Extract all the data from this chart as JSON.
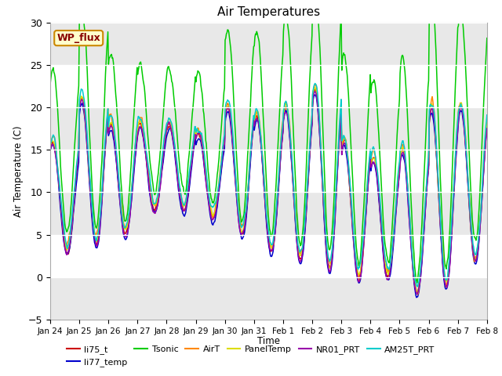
{
  "title": "Air Temperatures",
  "ylabel": "Air Temperature (C)",
  "xlabel": "Time",
  "ylim": [
    -5,
    30
  ],
  "series_names": [
    "li75_t",
    "li77_temp",
    "Tsonic",
    "AirT",
    "PanelTemp",
    "NR01_PRT",
    "AM25T_PRT"
  ],
  "series_colors": [
    "#cc0000",
    "#0000cc",
    "#00cc00",
    "#ff8800",
    "#dddd00",
    "#9900aa",
    "#00cccc"
  ],
  "annotation_text": "WP_flux",
  "annotation_bg": "#ffffcc",
  "annotation_border": "#cc8800",
  "annotation_text_color": "#880000",
  "background_color": "#ffffff",
  "plot_bg_color": "#e8e8e8",
  "tick_labels": [
    "Jan 24",
    "Jan 25",
    "Jan 26",
    "Jan 27",
    "Jan 28",
    "Jan 29",
    "Jan 30",
    "Jan 31",
    "Feb 1",
    "Feb 2",
    "Feb 3",
    "Feb 4",
    "Feb 5",
    "Feb 6",
    "Feb 7",
    "Feb 8"
  ],
  "band_colors": [
    "#e8e8e8",
    "#ffffff",
    "#e8e8e8",
    "#ffffff",
    "#e8e8e8",
    "#ffffff",
    "#e8e8e8"
  ],
  "band_edges": [
    -5,
    0,
    5,
    10,
    15,
    20,
    25,
    30
  ]
}
